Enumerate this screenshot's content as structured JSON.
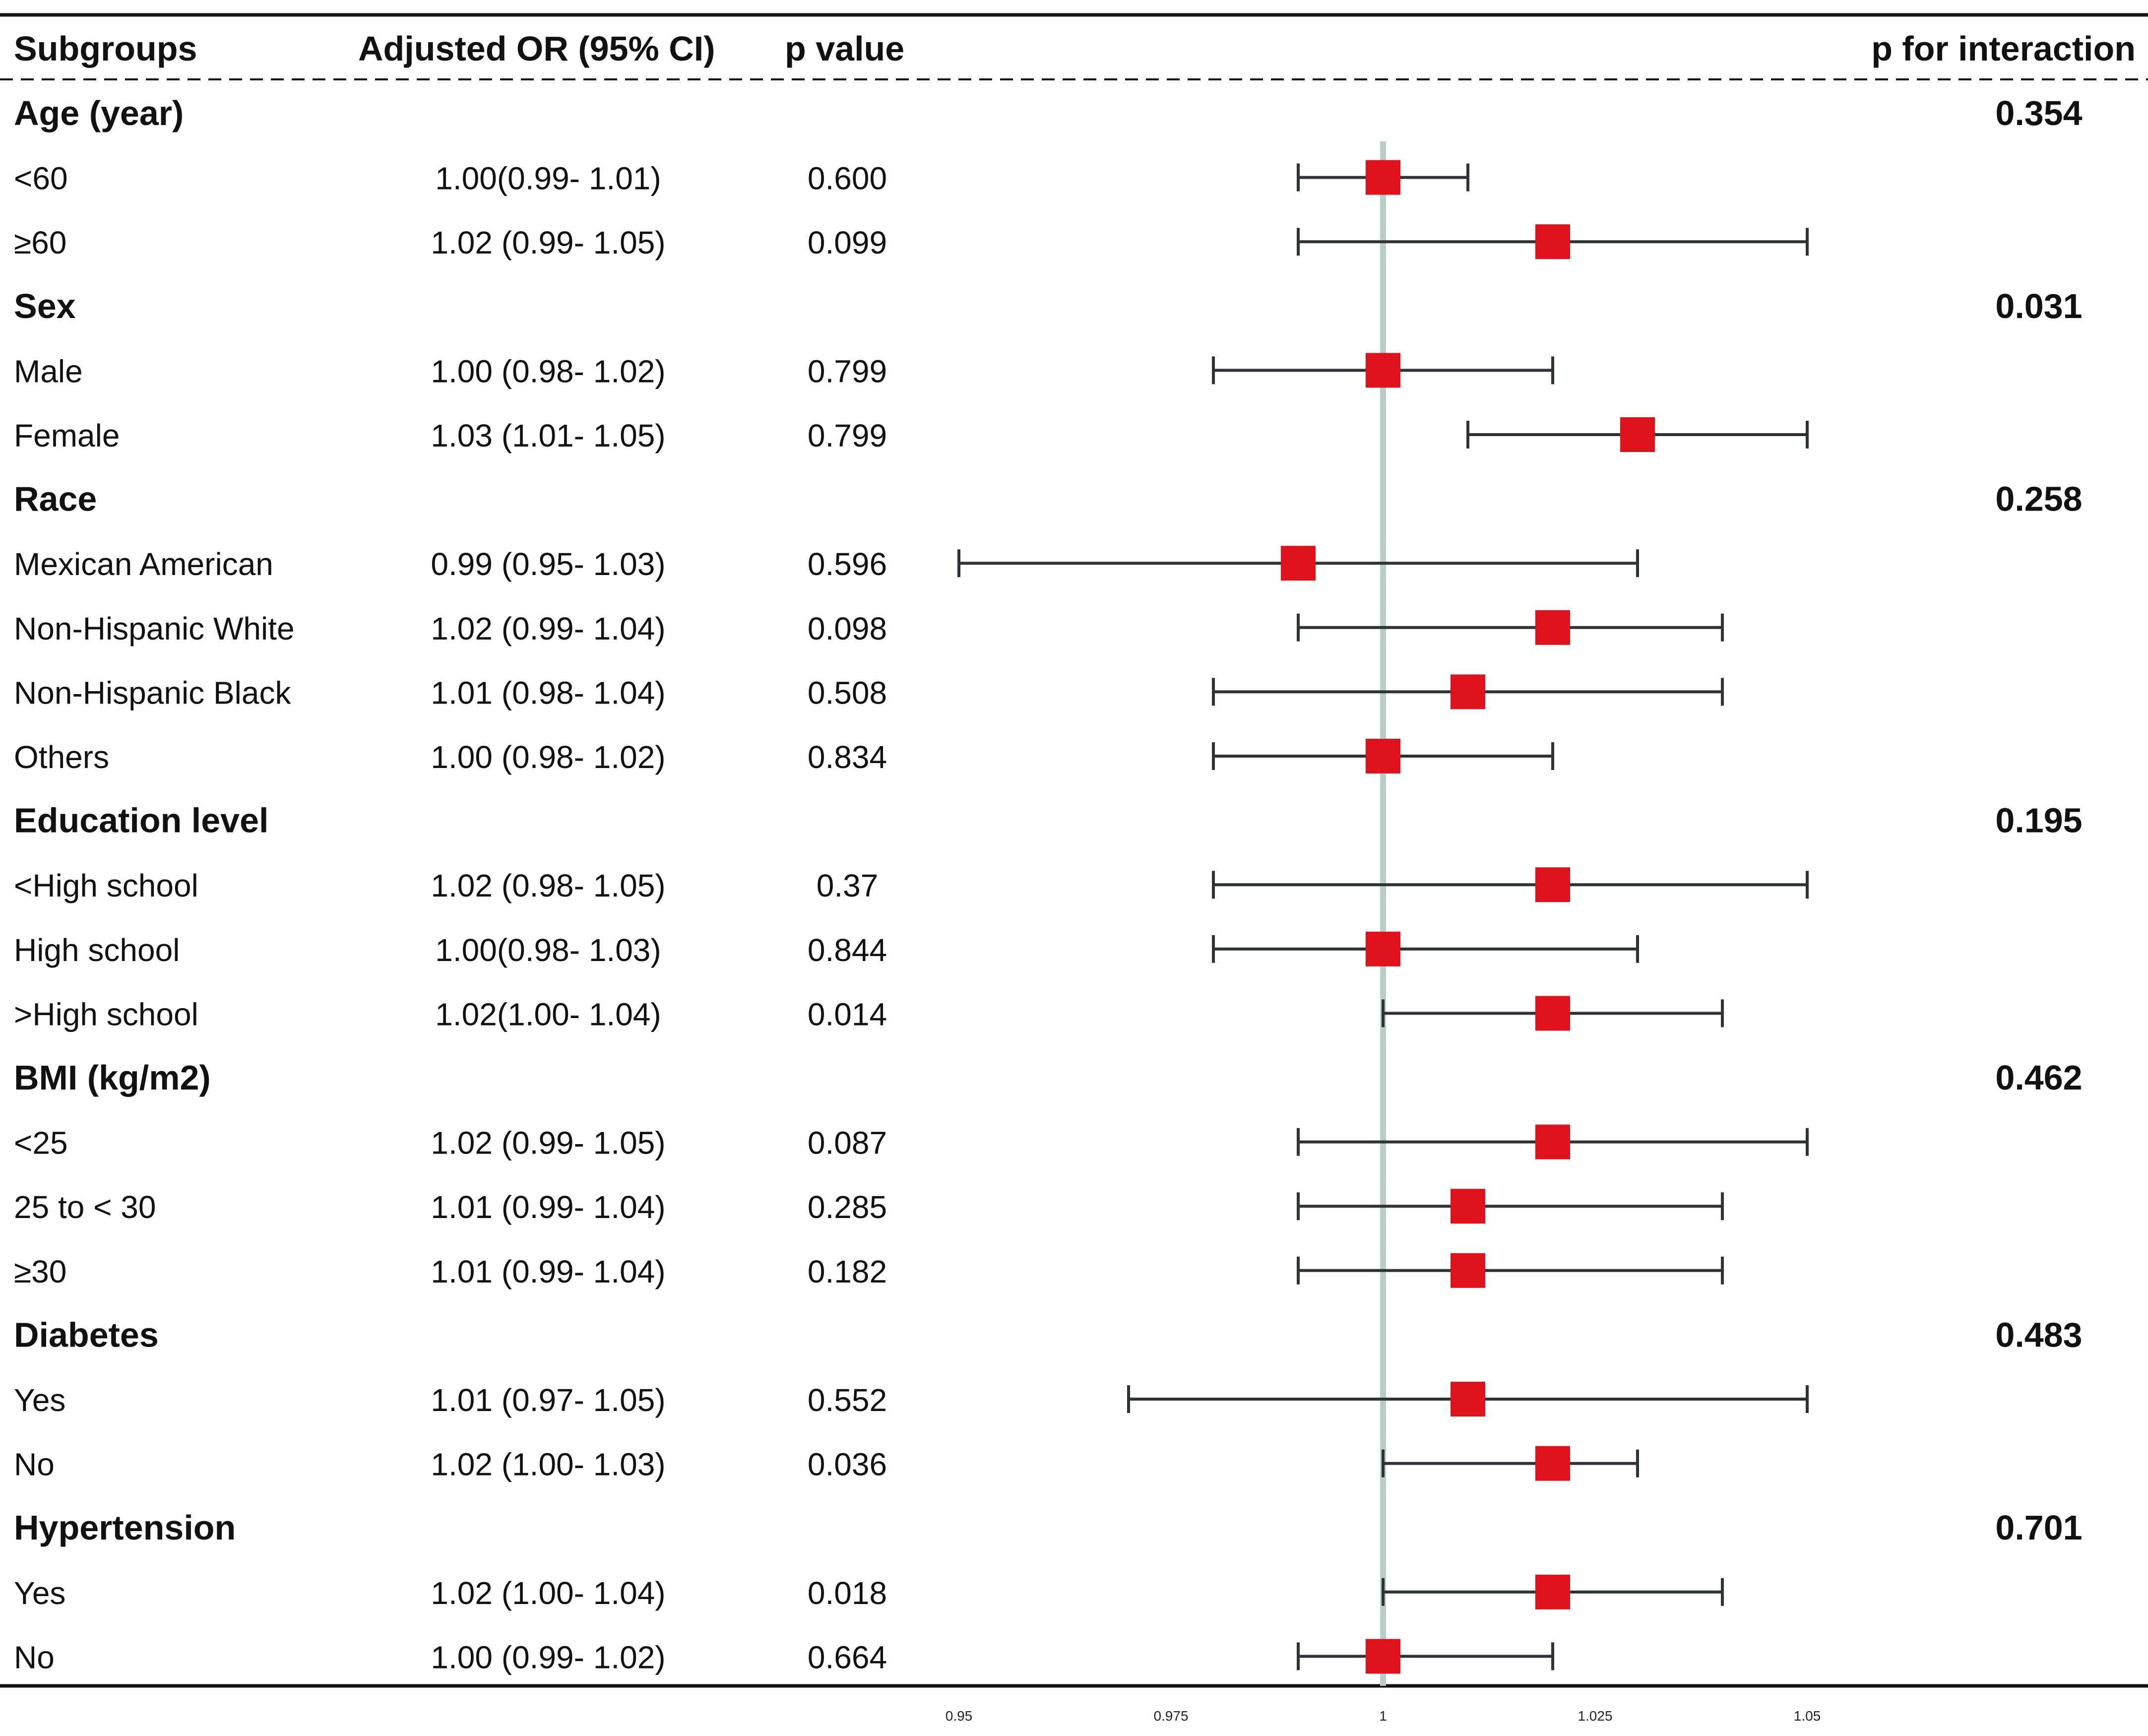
{
  "chart_data": {
    "type": "forest",
    "headers": {
      "subgroups": "Subgroups",
      "or": "Adjusted OR (95% CI)",
      "pvalue": "p value",
      "pinteraction": "p for interaction"
    },
    "xaxis": {
      "min": 0.95,
      "max": 1.05,
      "reference": 1,
      "ticks": [
        0.95,
        0.975,
        1,
        1.025,
        1.05
      ],
      "tick_labels": [
        "0.95",
        "0.975",
        "1",
        "1.025",
        "1.05"
      ]
    },
    "rows": [
      {
        "kind": "group",
        "label": "Age (year)",
        "pint": "0.354"
      },
      {
        "kind": "sub",
        "label": "<60",
        "or_text": "1.00(0.99- 1.01)",
        "p": "0.600",
        "est": 1.0,
        "lo": 0.99,
        "hi": 1.01
      },
      {
        "kind": "sub",
        "label": "≥60",
        "or_text": "1.02 (0.99- 1.05)",
        "p": "0.099",
        "est": 1.02,
        "lo": 0.99,
        "hi": 1.05
      },
      {
        "kind": "group",
        "label": "Sex",
        "pint": "0.031"
      },
      {
        "kind": "sub",
        "label": "Male",
        "or_text": "1.00 (0.98- 1.02)",
        "p": "0.799",
        "est": 1.0,
        "lo": 0.98,
        "hi": 1.02
      },
      {
        "kind": "sub",
        "label": "Female",
        "or_text": "1.03 (1.01- 1.05)",
        "p": "0.799",
        "est": 1.03,
        "lo": 1.01,
        "hi": 1.05
      },
      {
        "kind": "group",
        "label": "Race",
        "pint": "0.258"
      },
      {
        "kind": "sub",
        "label": "Mexican American",
        "or_text": "0.99 (0.95- 1.03)",
        "p": "0.596",
        "est": 0.99,
        "lo": 0.95,
        "hi": 1.03
      },
      {
        "kind": "sub",
        "label": "Non-Hispanic White",
        "or_text": "1.02 (0.99- 1.04)",
        "p": "0.098",
        "est": 1.02,
        "lo": 0.99,
        "hi": 1.04
      },
      {
        "kind": "sub",
        "label": "Non-Hispanic Black",
        "or_text": "1.01 (0.98- 1.04)",
        "p": "0.508",
        "est": 1.01,
        "lo": 0.98,
        "hi": 1.04
      },
      {
        "kind": "sub",
        "label": "Others",
        "or_text": "1.00 (0.98- 1.02)",
        "p": "0.834",
        "est": 1.0,
        "lo": 0.98,
        "hi": 1.02
      },
      {
        "kind": "group",
        "label": "Education level",
        "pint": "0.195"
      },
      {
        "kind": "sub",
        "label": "<High school",
        "or_text": "1.02 (0.98- 1.05)",
        "p": "0.37",
        "est": 1.02,
        "lo": 0.98,
        "hi": 1.05
      },
      {
        "kind": "sub",
        "label": "High school",
        "or_text": "1.00(0.98- 1.03)",
        "p": "0.844",
        "est": 1.0,
        "lo": 0.98,
        "hi": 1.03
      },
      {
        "kind": "sub",
        "label": ">High school",
        "or_text": "1.02(1.00- 1.04)",
        "p": "0.014",
        "est": 1.02,
        "lo": 1.0,
        "hi": 1.04
      },
      {
        "kind": "group",
        "label": "BMI (kg/m2)",
        "pint": "0.462"
      },
      {
        "kind": "sub",
        "label": "<25",
        "or_text": "1.02 (0.99- 1.05)",
        "p": "0.087",
        "est": 1.02,
        "lo": 0.99,
        "hi": 1.05
      },
      {
        "kind": "sub",
        "label": "25 to < 30",
        "or_text": "1.01 (0.99- 1.04)",
        "p": "0.285",
        "est": 1.01,
        "lo": 0.99,
        "hi": 1.04
      },
      {
        "kind": "sub",
        "label": "≥30",
        "or_text": "1.01 (0.99- 1.04)",
        "p": "0.182",
        "est": 1.01,
        "lo": 0.99,
        "hi": 1.04
      },
      {
        "kind": "group",
        "label": "Diabetes",
        "pint": "0.483"
      },
      {
        "kind": "sub",
        "label": "Yes",
        "or_text": "1.01 (0.97- 1.05)",
        "p": "0.552",
        "est": 1.01,
        "lo": 0.97,
        "hi": 1.05
      },
      {
        "kind": "sub",
        "label": "No",
        "or_text": "1.02 (1.00- 1.03)",
        "p": "0.036",
        "est": 1.02,
        "lo": 1.0,
        "hi": 1.03
      },
      {
        "kind": "group",
        "label": "Hypertension",
        "pint": "0.701"
      },
      {
        "kind": "sub",
        "label": "Yes",
        "or_text": "1.02 (1.00- 1.04)",
        "p": "0.018",
        "est": 1.02,
        "lo": 1.0,
        "hi": 1.04
      },
      {
        "kind": "sub",
        "label": "No",
        "or_text": "1.00 (0.99- 1.02)",
        "p": "0.664",
        "est": 1.0,
        "lo": 0.99,
        "hi": 1.02
      }
    ],
    "colors": {
      "marker": "#e0121b",
      "whisker": "#2e3338",
      "reference_line": "#b9cfc6",
      "rule": "#111111"
    }
  }
}
